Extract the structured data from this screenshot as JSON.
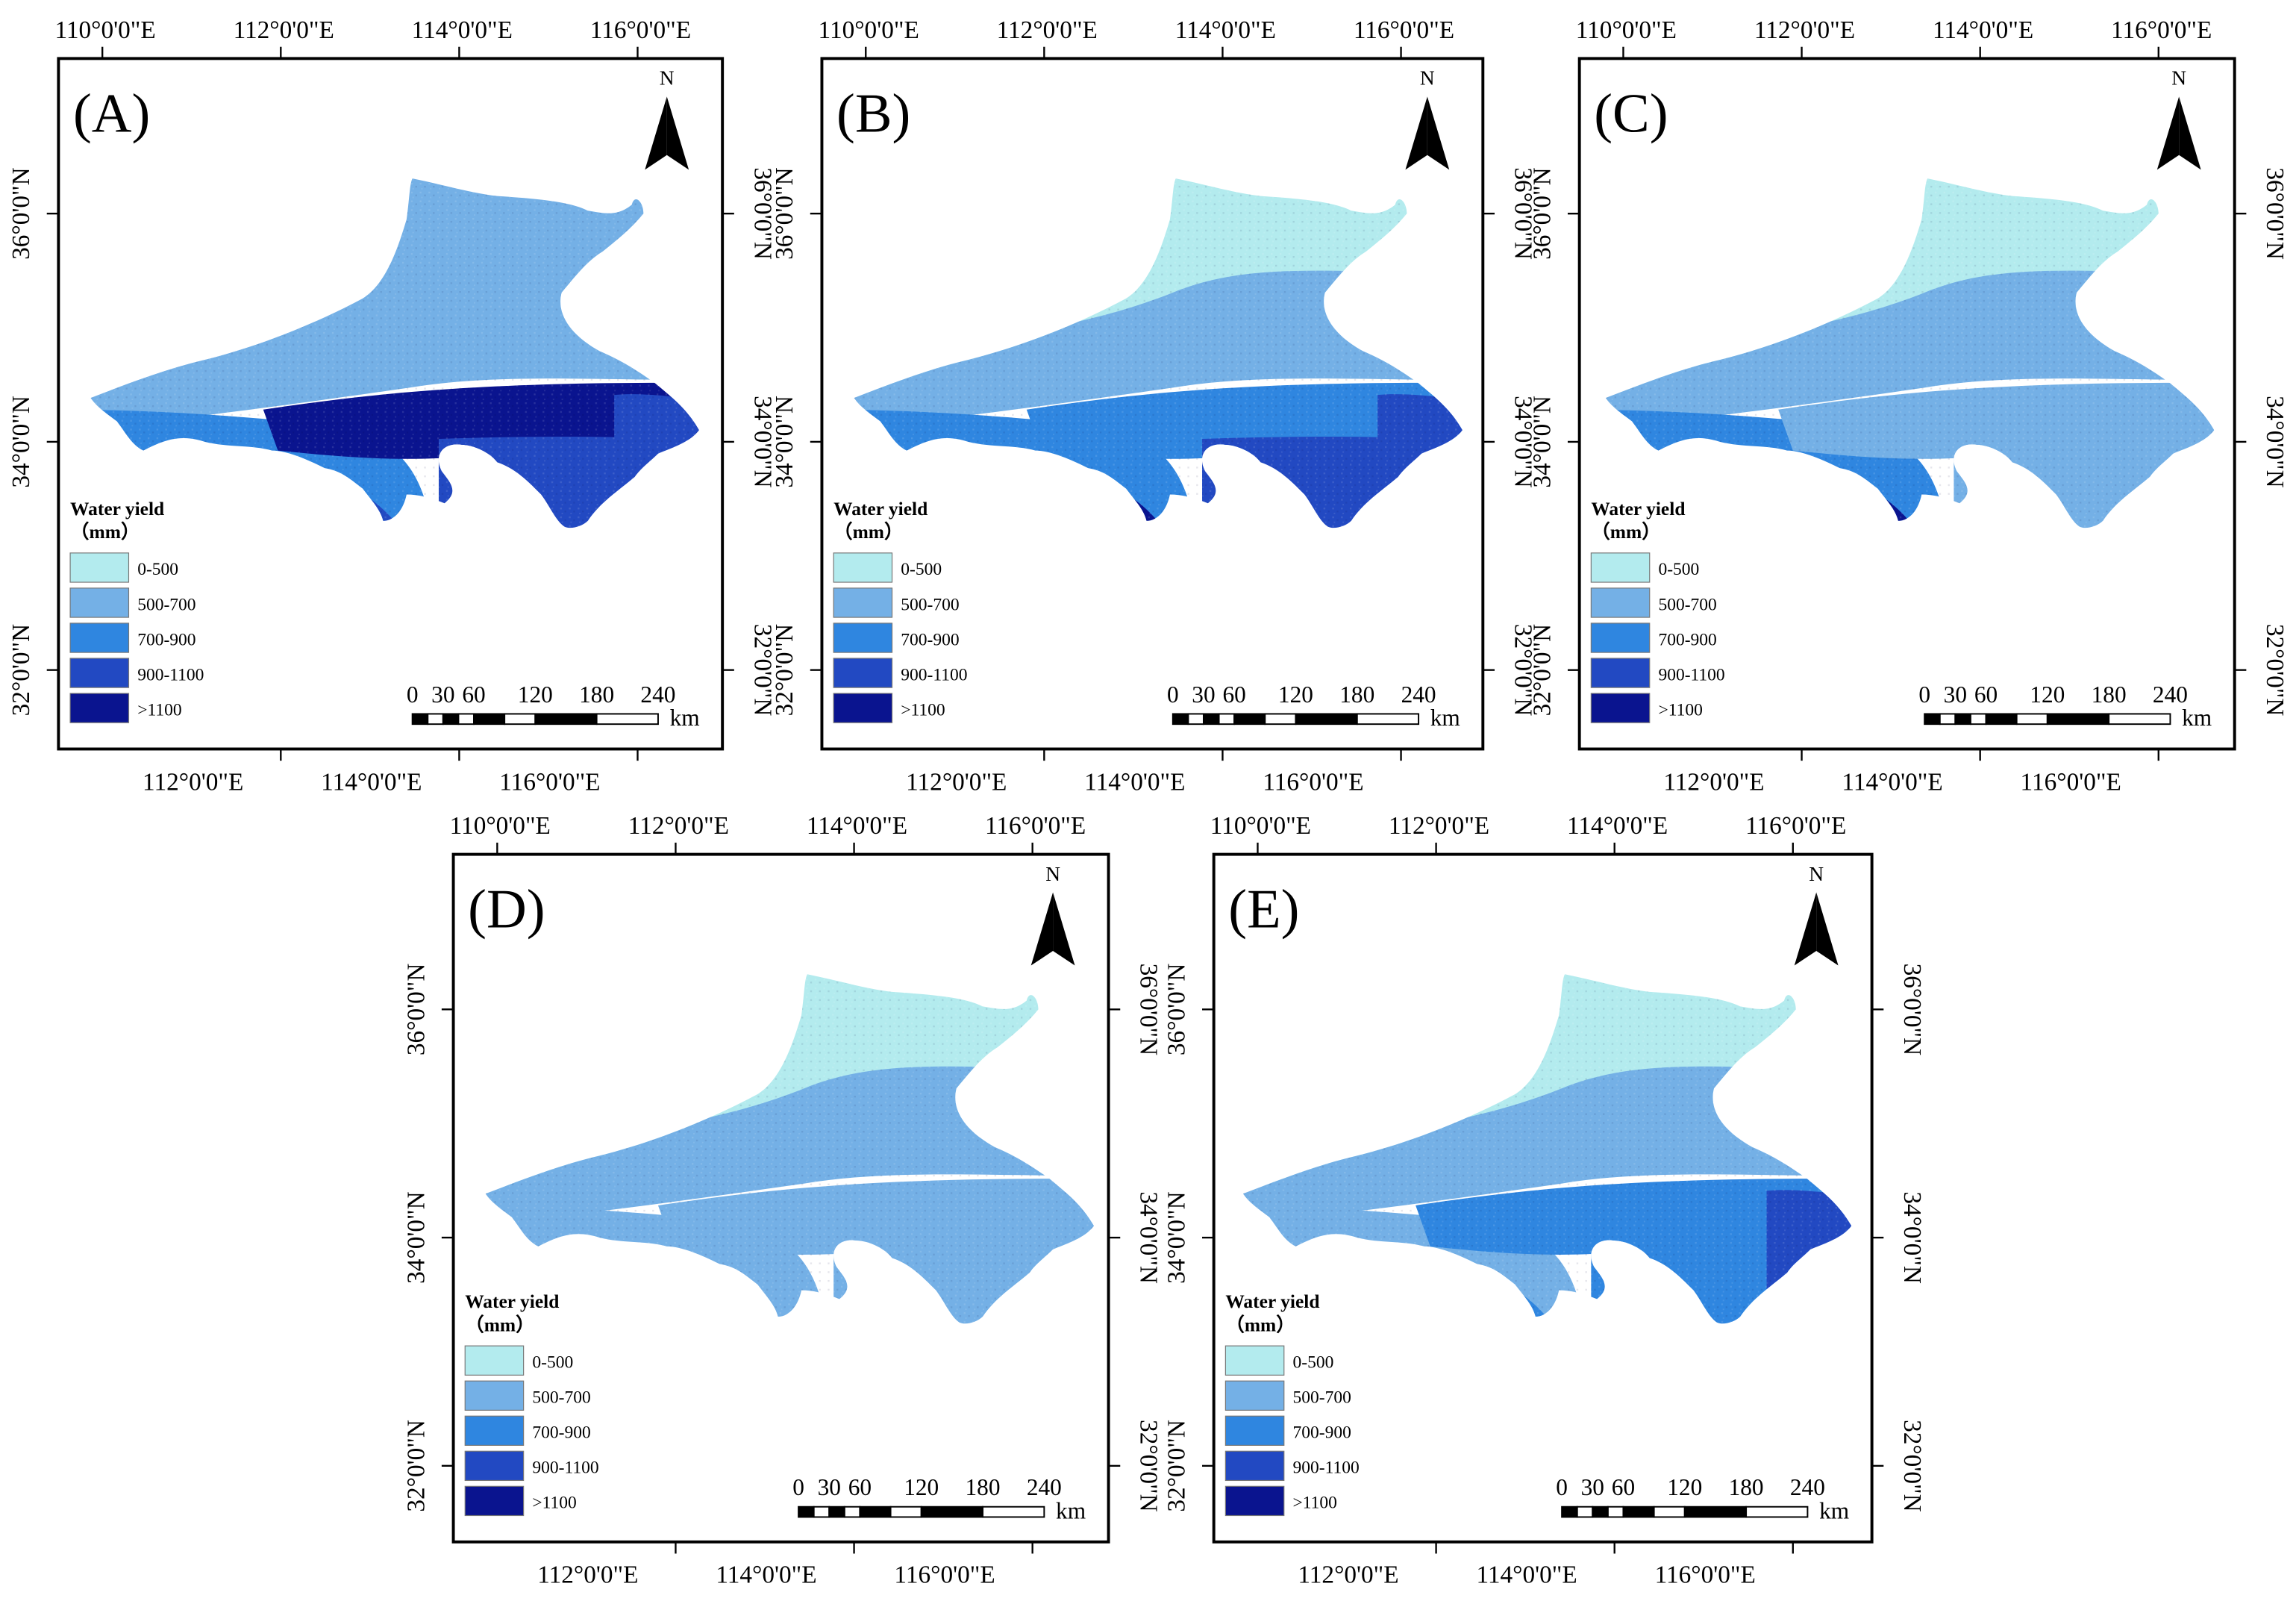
{
  "figure": {
    "axis_labels": {
      "lon_top": [
        "110°0'0\"E",
        "112°0'0\"E",
        "114°0'0\"E",
        "116°0'0\"E"
      ],
      "lon_bottom": [
        "112°0'0\"E",
        "114°0'0\"E",
        "116°0'0\"E"
      ],
      "lat_left": [
        "36°0'0\"N",
        "34°0'0\"N",
        "32°0'0\"N"
      ],
      "lat_right": [
        "36°0'0\"N",
        "34°0'0\"N",
        "32°0'0\"N"
      ]
    },
    "north_arrow_label": "N",
    "legend": {
      "title_line1": "Water yield",
      "title_line2": "（mm）",
      "classes": [
        {
          "label": "0-500",
          "color": "#b3ebee"
        },
        {
          "label": "500-700",
          "color": "#74b0e6"
        },
        {
          "label": "700-900",
          "color": "#2f86e0"
        },
        {
          "label": "900-1100",
          "color": "#2249c2"
        },
        {
          "label": ">1100",
          "color": "#0a148f"
        }
      ]
    },
    "scale_bar": {
      "ticks": [
        "0",
        "30",
        "60",
        "120",
        "180",
        "240"
      ],
      "unit": "km"
    },
    "panels": [
      {
        "label": "(A)",
        "zones": [
          "1",
          "1",
          "2",
          "3",
          "4",
          "3",
          "3"
        ]
      },
      {
        "label": "(B)",
        "zones": [
          "0",
          "1",
          "2",
          "4",
          "2",
          "3",
          "3"
        ]
      },
      {
        "label": "(C)",
        "zones": [
          "0",
          "1",
          "2",
          "4",
          "1",
          "1",
          "1"
        ]
      },
      {
        "label": "(D)",
        "zones": [
          "0",
          "1",
          "1",
          "1",
          "1",
          "1",
          "1"
        ]
      },
      {
        "label": "(E)",
        "zones": [
          "0",
          "1",
          "1",
          "2",
          "2",
          "2",
          "3"
        ]
      }
    ]
  }
}
